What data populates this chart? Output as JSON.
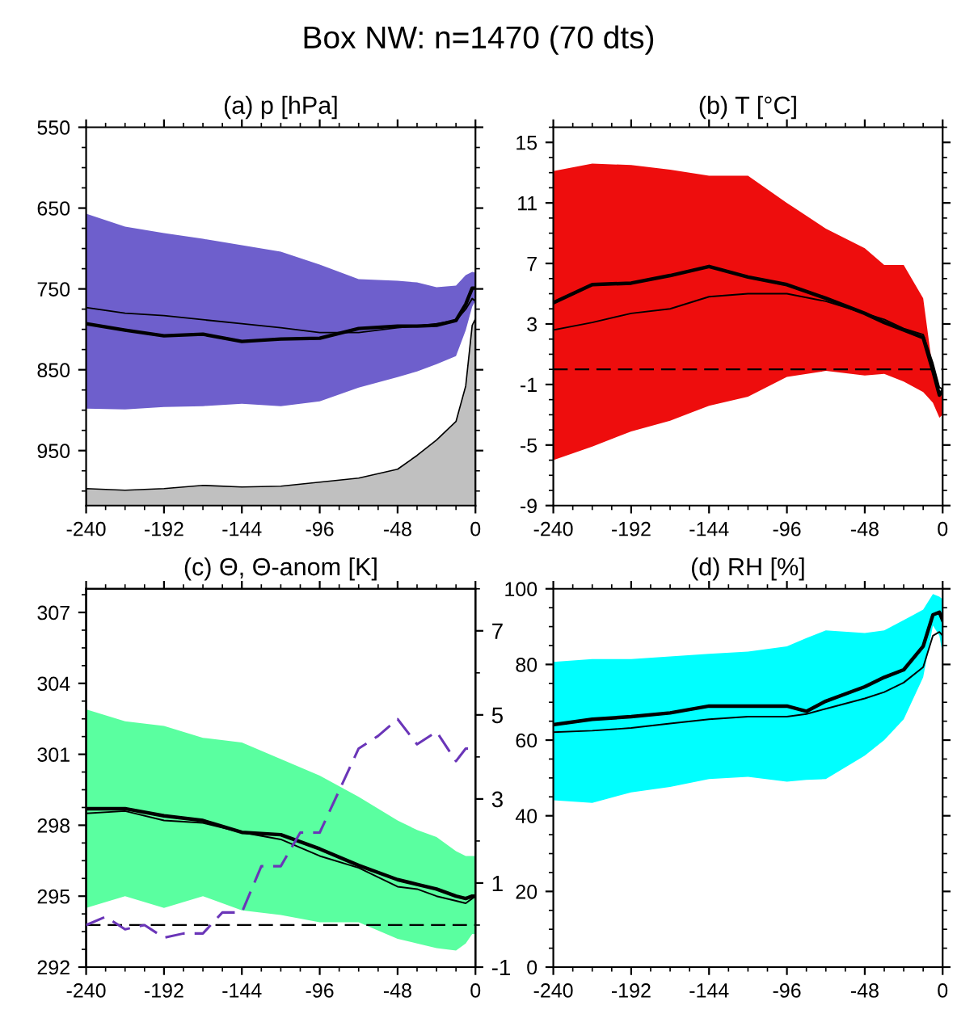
{
  "chart_data": [
    {
      "type": "line",
      "title": "(a) p [hPa]",
      "annotations": [
        "Box NW: n=1470 (70 dts)"
      ],
      "x": [
        -240,
        -216,
        -192,
        -168,
        -144,
        -120,
        -96,
        -72,
        -48,
        -36,
        -24,
        -12,
        -6,
        -2,
        0
      ],
      "xlim": [
        -240,
        0
      ],
      "xticks": [
        -240,
        -192,
        -144,
        -96,
        -48,
        0
      ],
      "ylim": [
        1018,
        550
      ],
      "yticks": [
        550,
        650,
        750,
        850,
        950
      ],
      "grid": false,
      "legend": false,
      "series": [
        {
          "type": "area",
          "color": "#c0c0c0",
          "values": [
            null,
            null,
            null,
            null,
            null,
            null,
            null,
            null,
            null,
            null,
            null,
            null,
            null,
            null,
            null
          ],
          "lower": [
            997,
            999,
            997,
            993,
            995,
            994,
            989,
            984,
            973,
            956,
            937,
            914,
            870,
            795,
            787
          ],
          "upper": [
            1018,
            1018,
            1018,
            1018,
            1018,
            1018,
            1018,
            1018,
            1018,
            1018,
            1018,
            1018,
            1018,
            1018,
            1018
          ]
        },
        {
          "color": "#6e5fcc",
          "values": [
            null,
            null,
            null,
            null,
            null,
            null,
            null,
            null,
            null,
            null,
            null,
            null,
            null,
            null,
            null
          ],
          "lower": [
            898,
            899,
            896,
            895,
            892,
            895,
            889,
            872,
            859,
            852,
            843,
            833,
            801,
            772,
            765
          ],
          "upper": [
            657,
            673,
            681,
            688,
            696,
            704,
            720,
            738,
            740,
            742,
            748,
            746,
            733,
            729,
            730
          ]
        },
        {
          "color": "#000000",
          "values": [
            793,
            801,
            808,
            806,
            815,
            812,
            811,
            799,
            796,
            796,
            795,
            789,
            769,
            749,
            749
          ]
        },
        {
          "color": "#000000",
          "values": [
            773,
            780,
            783,
            788,
            793,
            798,
            804,
            804,
            798,
            796,
            793,
            789,
            775,
            762,
            765
          ]
        }
      ]
    },
    {
      "type": "line",
      "title": "(b) T [°C]",
      "x": [
        -240,
        -216,
        -192,
        -168,
        -144,
        -120,
        -96,
        -72,
        -48,
        -36,
        -24,
        -12,
        -6,
        -2,
        0
      ],
      "xlim": [
        -240,
        0
      ],
      "xticks": [
        -240,
        -192,
        -144,
        -96,
        -48,
        0
      ],
      "ylim": [
        -9,
        16
      ],
      "yticks": [
        -9,
        -5,
        -1,
        3,
        7,
        11,
        15
      ],
      "grid": false,
      "legend": false,
      "ref_lines": [
        {
          "axis": "y",
          "value": 0,
          "color": "#000000",
          "line_style": "dashed"
        }
      ],
      "series": [
        {
          "color": "#ee0d0d",
          "values": [
            null,
            null,
            null,
            null,
            null,
            null,
            null,
            null,
            null,
            null,
            null,
            null,
            null,
            null,
            null
          ],
          "lower": [
            -6.0,
            -5.1,
            -4.1,
            -3.4,
            -2.4,
            -1.8,
            -0.5,
            -0.1,
            -0.4,
            -0.3,
            -0.8,
            -1.5,
            -2.2,
            -3.2,
            -3.0
          ],
          "upper": [
            13.1,
            13.6,
            13.5,
            13.2,
            12.8,
            12.8,
            11.0,
            9.3,
            8.0,
            6.9,
            6.9,
            4.7,
            -0.1,
            -1.5,
            -1.8
          ]
        },
        {
          "color": "#000000",
          "values": [
            4.4,
            5.6,
            5.7,
            6.2,
            6.8,
            6.1,
            5.6,
            4.7,
            3.7,
            3.1,
            2.6,
            2.1,
            -0.1,
            -1.7,
            -1.4
          ]
        },
        {
          "color": "#000000",
          "values": [
            2.6,
            3.1,
            3.7,
            4.0,
            4.8,
            5.0,
            5.0,
            4.5,
            3.7,
            3.3,
            2.7,
            2.3,
            0.4,
            -1.2,
            -1.3
          ]
        }
      ]
    },
    {
      "type": "line",
      "title": "(c) Θ, Θ-anom [K]",
      "x": [
        -240,
        -216,
        -192,
        -168,
        -144,
        -120,
        -96,
        -72,
        -48,
        -36,
        -24,
        -12,
        -6,
        -2,
        0
      ],
      "xlim": [
        -240,
        0
      ],
      "xticks": [
        -240,
        -192,
        -144,
        -96,
        -48,
        0
      ],
      "ylim": [
        292,
        308
      ],
      "yticks": [
        292,
        295,
        298,
        301,
        304,
        307
      ],
      "y2lim": [
        -1,
        8
      ],
      "y2ticks": [
        -1,
        1,
        3,
        5,
        7
      ],
      "grid": false,
      "legend": false,
      "ref_lines": [
        {
          "axis": "y2",
          "value": 0,
          "color": "#000000",
          "line_style": "dashed"
        }
      ],
      "series": [
        {
          "color": "#5affa0",
          "values": [
            null,
            null,
            null,
            null,
            null,
            null,
            null,
            null,
            null,
            null,
            null,
            null,
            null,
            null,
            null
          ],
          "lower": [
            294.5,
            295.0,
            294.5,
            295.0,
            294.4,
            294.2,
            293.9,
            293.9,
            293.2,
            293.0,
            292.8,
            292.7,
            293.0,
            293.4,
            293.4
          ],
          "upper": [
            302.9,
            302.4,
            302.2,
            301.7,
            301.5,
            300.8,
            300.1,
            299.2,
            298.2,
            297.8,
            297.5,
            296.9,
            296.7,
            296.7,
            296.7
          ]
        },
        {
          "color": "#000000",
          "values": [
            298.7,
            298.7,
            298.4,
            298.2,
            297.7,
            297.6,
            297.0,
            296.3,
            295.7,
            295.5,
            295.3,
            295.0,
            294.9,
            295.0,
            295.0
          ]
        },
        {
          "color": "#000000",
          "values": [
            298.5,
            298.6,
            298.2,
            298.1,
            297.7,
            297.4,
            296.7,
            296.2,
            295.4,
            295.3,
            295.0,
            294.8,
            294.7,
            294.9,
            295.0
          ]
        },
        {
          "axis": "y2",
          "line_style": "dashed",
          "color": "#6a35b8",
          "x": [
            -240,
            -228,
            -216,
            -204,
            -192,
            -180,
            -168,
            -156,
            -144,
            -132,
            -120,
            -108,
            -96,
            -84,
            -72,
            -60,
            -48,
            -36,
            -24,
            -12,
            -6,
            -2,
            0
          ],
          "values": [
            0.0,
            0.2,
            -0.1,
            0.0,
            -0.3,
            -0.2,
            -0.2,
            0.3,
            0.3,
            1.4,
            1.4,
            2.2,
            2.2,
            3.2,
            4.2,
            4.5,
            4.9,
            4.3,
            4.6,
            3.9,
            4.2,
            4.2,
            4.2
          ]
        }
      ]
    },
    {
      "type": "line",
      "title": "(d) RH [%]",
      "x": [
        -240,
        -216,
        -192,
        -168,
        -144,
        -120,
        -96,
        -84,
        -72,
        -48,
        -36,
        -24,
        -12,
        -6,
        -2,
        0
      ],
      "xlim": [
        -240,
        0
      ],
      "xticks": [
        -240,
        -192,
        -144,
        -96,
        -48,
        0
      ],
      "ylim": [
        0,
        100
      ],
      "yticks": [
        0,
        20,
        40,
        60,
        80,
        100
      ],
      "grid": false,
      "legend": false,
      "series": [
        {
          "color": "#00ffff",
          "values": [
            null,
            null,
            null,
            null,
            null,
            null,
            null,
            null,
            null,
            null,
            null,
            null,
            null,
            null,
            null,
            null
          ],
          "lower": [
            44.1,
            43.4,
            46.2,
            47.6,
            49.7,
            50.3,
            49.0,
            49.5,
            49.7,
            55.9,
            60.0,
            65.5,
            76.6,
            90.3,
            87.6,
            82.8
          ],
          "upper": [
            80.7,
            81.4,
            81.4,
            82.1,
            82.8,
            83.4,
            84.8,
            87.0,
            89.0,
            88.3,
            89.0,
            91.7,
            94.5,
            98.6,
            97.9,
            97.2
          ]
        },
        {
          "color": "#000000",
          "values": [
            64.1,
            65.5,
            66.2,
            67.2,
            69.0,
            69.0,
            69.0,
            67.6,
            70.3,
            74.1,
            76.6,
            78.6,
            84.8,
            93.1,
            93.8,
            91.7
          ]
        },
        {
          "color": "#000000",
          "values": [
            62.1,
            62.5,
            63.2,
            64.4,
            65.5,
            66.2,
            66.2,
            66.9,
            68.3,
            71.0,
            72.7,
            75.2,
            79.3,
            87.6,
            88.6,
            87.6
          ]
        }
      ]
    }
  ]
}
